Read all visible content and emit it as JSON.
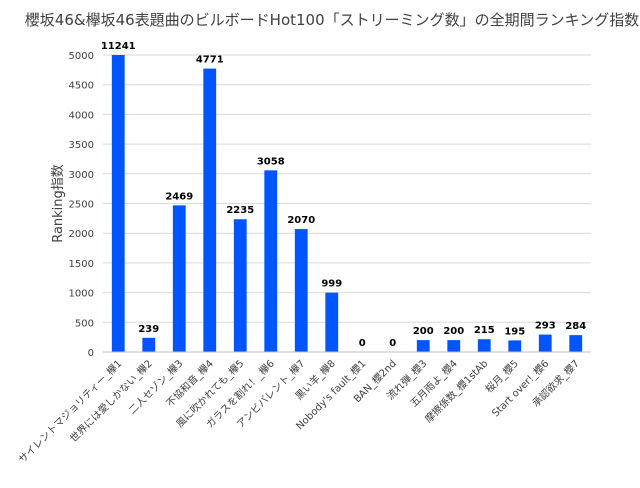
{
  "chart_data": {
    "type": "bar",
    "title": "櫻坂46&欅坂46表題曲のビルボードHot100「ストリーミング数」の全期間ランキング指数",
    "xlabel": "",
    "ylabel": "Ranking指数",
    "ylim": [
      0,
      5000
    ],
    "yticks": [
      0,
      500,
      1000,
      1500,
      2000,
      2500,
      3000,
      3500,
      4000,
      4500,
      5000
    ],
    "grid": true,
    "legend": "none",
    "bar_color": "#0055ff",
    "categories": [
      "サイレントマジョリティー_欅1",
      "世界には愛しかない_欅2",
      "二人セゾン_欅3",
      "不協和音_欅4",
      "風に吹かれても_欅5",
      "ガラスを割れ！_欅6",
      "アンビバレント_欅7",
      "黒い羊_欅8",
      "Nobody's fault_櫻1",
      "BAN_櫻2nd",
      "流れ弾_櫻3",
      "五月雨よ_櫻4",
      "摩擦係数_櫻1stAb",
      "桜月_櫻5",
      "Start over!_櫻6",
      "承認欲求_櫻7"
    ],
    "values": [
      11241,
      239,
      2469,
      4771,
      2235,
      3058,
      2070,
      999,
      0,
      0,
      200,
      200,
      215,
      195,
      293,
      284
    ],
    "data_labels": [
      "11241",
      "239",
      "2469",
      "4771",
      "2235",
      "3058",
      "2070",
      "999",
      "0",
      "0",
      "200",
      "200",
      "215",
      "195",
      "293",
      "284"
    ]
  }
}
